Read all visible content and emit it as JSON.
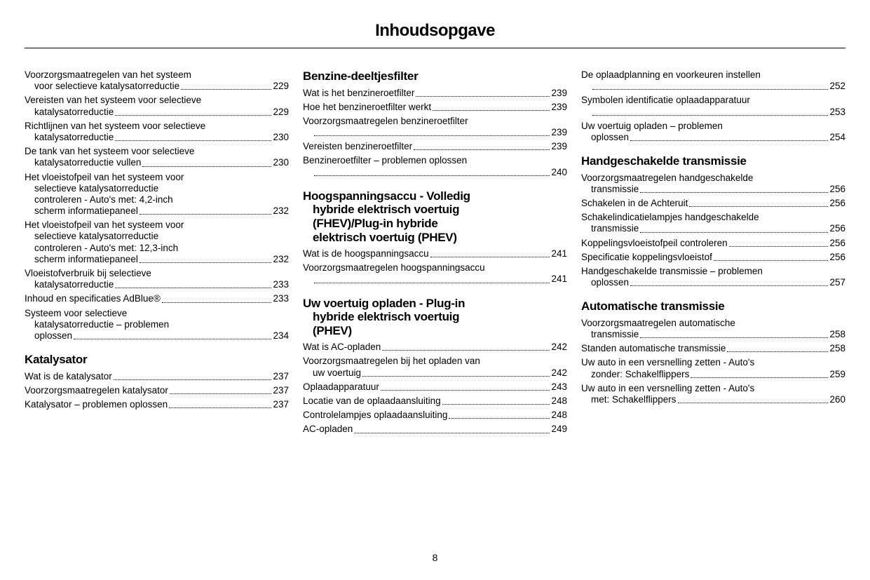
{
  "pageTitle": "Inhoudsopgave",
  "pageNumber": "8",
  "columns": [
    {
      "items": [
        {
          "type": "entry",
          "lines": [
            "Voorzorgsmaatregelen van het systeem",
            "voor selectieve katalysatorreductie"
          ],
          "page": "229"
        },
        {
          "type": "entry",
          "lines": [
            "Vereisten van het systeem voor selectieve",
            "katalysatorreductie"
          ],
          "page": "229"
        },
        {
          "type": "entry",
          "lines": [
            "Richtlijnen van het systeem voor selectieve",
            "katalysatorreductie"
          ],
          "page": "230"
        },
        {
          "type": "entry",
          "lines": [
            "De tank van het systeem voor selectieve",
            "katalysatorreductie vullen"
          ],
          "page": "230"
        },
        {
          "type": "entry",
          "lines": [
            "Het vloeistofpeil van het systeem voor",
            "selectieve katalysatorreductie",
            "controleren - Auto's met: 4,2-inch",
            "scherm informatiepaneel"
          ],
          "page": "232"
        },
        {
          "type": "entry",
          "lines": [
            "Het vloeistofpeil van het systeem voor",
            "selectieve katalysatorreductie",
            "controleren - Auto's met: 12,3-inch",
            "scherm informatiepaneel"
          ],
          "page": "232"
        },
        {
          "type": "entry",
          "lines": [
            "Vloeistofverbruik bij selectieve",
            "katalysatorreductie"
          ],
          "page": "233"
        },
        {
          "type": "entry",
          "lines": [
            "Inhoud en specificaties AdBlue®"
          ],
          "page": "233"
        },
        {
          "type": "entry",
          "lines": [
            "Systeem voor selectieve",
            "katalysatorreductie – problemen",
            "oplossen"
          ],
          "page": "234"
        },
        {
          "type": "heading",
          "lines": [
            "Katalysator"
          ]
        },
        {
          "type": "entry",
          "lines": [
            "Wat is de katalysator"
          ],
          "page": "237"
        },
        {
          "type": "entry",
          "lines": [
            "Voorzorgsmaatregelen katalysator"
          ],
          "page": "237"
        },
        {
          "type": "entry",
          "lines": [
            "Katalysator – problemen oplossen"
          ],
          "page": "237"
        }
      ]
    },
    {
      "items": [
        {
          "type": "heading",
          "lines": [
            "Benzine-deeltjesfilter"
          ],
          "firstTop": true
        },
        {
          "type": "entry",
          "lines": [
            "Wat is het benzineroetfilter"
          ],
          "page": "239"
        },
        {
          "type": "entry",
          "lines": [
            "Hoe het benzineroetfilter werkt"
          ],
          "page": "239"
        },
        {
          "type": "entry",
          "lines": [
            "Voorzorgsmaatregelen benzineroetfilter",
            ""
          ],
          "page": "239"
        },
        {
          "type": "entry",
          "lines": [
            "Vereisten benzineroetfilter"
          ],
          "page": "239"
        },
        {
          "type": "entry",
          "lines": [
            "Benzineroetfilter – problemen oplossen",
            ""
          ],
          "page": "240"
        },
        {
          "type": "heading",
          "lines": [
            "Hoogspanningsaccu - Volledig",
            "hybride elektrisch voertuig",
            "(FHEV)/Plug-in hybride",
            "elektrisch voertuig (PHEV)"
          ]
        },
        {
          "type": "entry",
          "lines": [
            "Wat is de hoogspanningsaccu"
          ],
          "page": "241"
        },
        {
          "type": "entry",
          "lines": [
            "Voorzorgsmaatregelen hoogspanningsaccu",
            ""
          ],
          "page": "241"
        },
        {
          "type": "heading",
          "lines": [
            "Uw voertuig opladen - Plug-in",
            "hybride elektrisch voertuig",
            "(PHEV)"
          ]
        },
        {
          "type": "entry",
          "lines": [
            "Wat is AC-opladen"
          ],
          "page": "242"
        },
        {
          "type": "entry",
          "lines": [
            "Voorzorgsmaatregelen bij het opladen van",
            "uw voertuig"
          ],
          "page": "242"
        },
        {
          "type": "entry",
          "lines": [
            "Oplaadapparatuur"
          ],
          "page": "243"
        },
        {
          "type": "entry",
          "lines": [
            "Locatie van de oplaadaansluiting"
          ],
          "page": "248"
        },
        {
          "type": "entry",
          "lines": [
            "Controlelampjes oplaadaansluiting"
          ],
          "page": "248"
        },
        {
          "type": "entry",
          "lines": [
            "AC-opladen"
          ],
          "page": "249"
        }
      ]
    },
    {
      "items": [
        {
          "type": "entry",
          "lines": [
            "De oplaadplanning en voorkeuren instellen",
            ""
          ],
          "page": "252"
        },
        {
          "type": "entry",
          "lines": [
            "Symbolen identificatie oplaadapparatuur",
            ""
          ],
          "page": "253"
        },
        {
          "type": "entry",
          "lines": [
            "Uw voertuig opladen – problemen",
            "oplossen"
          ],
          "page": "254"
        },
        {
          "type": "heading",
          "lines": [
            "Handgeschakelde transmissie"
          ]
        },
        {
          "type": "entry",
          "lines": [
            "Voorzorgsmaatregelen handgeschakelde",
            "transmissie"
          ],
          "page": "256"
        },
        {
          "type": "entry",
          "lines": [
            "Schakelen in de Achteruit"
          ],
          "page": "256"
        },
        {
          "type": "entry",
          "lines": [
            "Schakelindicatielampjes handgeschakelde",
            "transmissie"
          ],
          "page": "256"
        },
        {
          "type": "entry",
          "lines": [
            "Koppelingsvloeistofpeil controleren"
          ],
          "page": "256"
        },
        {
          "type": "entry",
          "lines": [
            "Specificatie koppelingsvloeistof"
          ],
          "page": "256"
        },
        {
          "type": "entry",
          "lines": [
            "Handgeschakelde transmissie – problemen",
            "oplossen"
          ],
          "page": "257"
        },
        {
          "type": "heading",
          "lines": [
            "Automatische transmissie"
          ]
        },
        {
          "type": "entry",
          "lines": [
            "Voorzorgsmaatregelen automatische",
            "transmissie"
          ],
          "page": "258"
        },
        {
          "type": "entry",
          "lines": [
            "Standen automatische transmissie"
          ],
          "page": "258"
        },
        {
          "type": "entry",
          "lines": [
            "Uw auto in een versnelling zetten - Auto's",
            "zonder: Schakelflippers"
          ],
          "page": "259"
        },
        {
          "type": "entry",
          "lines": [
            "Uw auto in een versnelling zetten - Auto's",
            "met: Schakelflippers"
          ],
          "page": "260"
        }
      ]
    }
  ]
}
